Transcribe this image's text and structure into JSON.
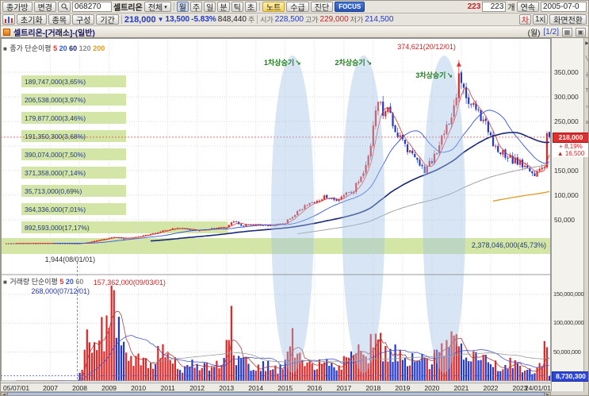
{
  "colors": {
    "up": "#dd2626",
    "down": "#2239cc",
    "ma5": "#e03030",
    "ma20": "#3355dd",
    "ma60": "#1a2878",
    "ma120": "#999999",
    "ma200": "#de9a1e",
    "vma5": "#b04040",
    "vma20": "#4455cc",
    "vma60": "#999999",
    "band": "#cfe49e",
    "ellipse": "rgba(160,192,228,0.42)",
    "badge_price_bg": "#e02e2e",
    "badge_vol_bg": "#2b46d8"
  },
  "toolbar1": {
    "mode": "종가방",
    "change": "변경",
    "code": "068270",
    "name": "셀트리온",
    "scope": "전체",
    "scope_arrow": "▾",
    "periods": [
      "월",
      "주",
      "일",
      "분",
      "틱",
      "초"
    ],
    "note": "노트",
    "supply": "수급",
    "diagnosis": "진단",
    "focus": "FOCUS",
    "count_badge": "223",
    "count": "223",
    "count_unit": "개",
    "continuous": "연속",
    "start_date": "2005-07-0"
  },
  "toolbar2": {
    "init": "초기화",
    "stock": "종목",
    "config": "구성",
    "range": "기간",
    "price": "218,000",
    "arrow": "▼",
    "change": "13,500",
    "pct": "-5.83%",
    "volume": "848,440",
    "volume_unit": "주",
    "open_label": "시가",
    "open": "228,500",
    "high_label": "고가",
    "high": "229,000",
    "low_label": "저가",
    "low": "214,500",
    "chart_short": "차",
    "scale": "1x|",
    "fullscreen": "화면전환"
  },
  "titlebar": {
    "title": "셀트리온-[거래소]-(일반)",
    "period": "(월)",
    "page": "[1/2]"
  },
  "legend_main": {
    "marker": "■",
    "label": "종가 단순이평",
    "w1": "5",
    "w2": "20",
    "w3": "60",
    "w4": "120",
    "w5": "200"
  },
  "legend_volume": {
    "marker": "■",
    "label": "거래량 단순이평",
    "w1": "5",
    "w2": "20",
    "w3": "60"
  },
  "annotations": {
    "rise1": "1차상승기",
    "rise2": "2차상승기",
    "rise3": "3차상승기",
    "arrow": "↘",
    "peak": "374,621(20/12/01)",
    "low": "1,944(08/01/01)",
    "vol_low": "268,000(07/12/01)",
    "vol_peak": "157,362,000(09/03/01)"
  },
  "volume_profile": {
    "rows": [
      {
        "text": "189,747,000(3,65%)",
        "pct": 3.65
      },
      {
        "text": "206,538,000(3,97%)",
        "pct": 3.97
      },
      {
        "text": "179,877,000(3,46%)",
        "pct": 3.46
      },
      {
        "text": "191,350,300(3,68%)",
        "pct": 3.68
      },
      {
        "text": "390,074,000(7,50%)",
        "pct": 7.5
      },
      {
        "text": "371,358,000(7,14%)",
        "pct": 7.14
      },
      {
        "text": "35,713,000(0,69%)",
        "pct": 0.69
      },
      {
        "text": "364,336,000(7,01%)",
        "pct": 7.01
      },
      {
        "text": "892,593,000(17,17%)",
        "pct": 17.17
      }
    ],
    "total": {
      "text": "2,378,046,000(45,73%)",
      "pct": 45.73
    }
  },
  "axis": {
    "price_labels": [
      [
        350000,
        "350,000"
      ],
      [
        300000,
        "300,000"
      ],
      [
        250000,
        "250,000"
      ],
      [
        150000,
        "150,000"
      ],
      [
        100000,
        "100,000"
      ],
      [
        50000,
        "50,000"
      ]
    ],
    "price_badge": {
      "text": "218,000",
      "sub1": "+ 8,19%",
      "sub2": "▲ 16,500"
    },
    "volume_labels": [
      [
        150000000,
        "150,000,000"
      ],
      [
        100000000,
        "100,000,000"
      ],
      [
        50000000,
        "50,000,000"
      ]
    ],
    "volume_badge": "8,730,300",
    "x_labels": [
      [
        "05/07/01",
        0,
        "left"
      ],
      [
        "2007",
        18,
        "c"
      ],
      [
        "2008",
        30,
        "c"
      ],
      [
        "2009",
        42,
        "c"
      ],
      [
        "2010",
        54,
        "c"
      ],
      [
        "2011",
        66,
        "c"
      ],
      [
        "2012",
        78,
        "c"
      ],
      [
        "2013",
        90,
        "c"
      ],
      [
        "2014",
        102,
        "c"
      ],
      [
        "2015",
        114,
        "c"
      ],
      [
        "2016",
        126,
        "c"
      ],
      [
        "2017",
        138,
        "c"
      ],
      [
        "2018",
        150,
        "c"
      ],
      [
        "2019",
        162,
        "c"
      ],
      [
        "2020",
        174,
        "c"
      ],
      [
        "2021",
        186,
        "c"
      ],
      [
        "2022",
        198,
        "c"
      ],
      [
        "2023",
        210,
        "c"
      ],
      [
        "24/01/01",
        222,
        "right"
      ]
    ]
  },
  "right_toolbar": {
    "icons": [
      {
        "name": "select-tool-icon",
        "glyph": "▶"
      },
      {
        "name": "trendline-tool-icon",
        "glyph": "╲"
      },
      {
        "name": "crosshair-tool-icon",
        "glyph": "┼"
      },
      {
        "name": "text-tool-icon",
        "glyph": "T"
      },
      {
        "name": "zoom-tool-icon",
        "glyph": "○"
      },
      {
        "name": "indicator-tool-icon",
        "glyph": "≡"
      },
      {
        "name": "pattern-tool-icon",
        "glyph": "□"
      },
      {
        "name": "collapse-panel-icon",
        "glyph": "◀"
      }
    ]
  },
  "chart_data": {
    "type": "candlestick+volume",
    "symbol": "068270",
    "period": "monthly",
    "months": 223,
    "start": "2005-07",
    "end": "2024-01",
    "seed": 11,
    "price_axis_max": 419000,
    "close_anchors": [
      [
        0,
        2200
      ],
      [
        18,
        2500
      ],
      [
        29,
        2100
      ],
      [
        30,
        1960
      ],
      [
        34,
        5000
      ],
      [
        38,
        9000
      ],
      [
        42,
        13000
      ],
      [
        44,
        15000
      ],
      [
        48,
        12000
      ],
      [
        54,
        16000
      ],
      [
        60,
        22000
      ],
      [
        66,
        30000
      ],
      [
        72,
        34000
      ],
      [
        78,
        28000
      ],
      [
        84,
        32000
      ],
      [
        90,
        36000
      ],
      [
        93,
        48000
      ],
      [
        96,
        38000
      ],
      [
        102,
        42000
      ],
      [
        108,
        38000
      ],
      [
        114,
        44000
      ],
      [
        118,
        62000
      ],
      [
        122,
        78000
      ],
      [
        126,
        88000
      ],
      [
        130,
        96000
      ],
      [
        134,
        90000
      ],
      [
        138,
        98000
      ],
      [
        142,
        110000
      ],
      [
        146,
        150000
      ],
      [
        149,
        200000
      ],
      [
        152,
        295000
      ],
      [
        154,
        260000
      ],
      [
        156,
        280000
      ],
      [
        158,
        250000
      ],
      [
        160,
        225000
      ],
      [
        162,
        205000
      ],
      [
        165,
        185000
      ],
      [
        168,
        165000
      ],
      [
        171,
        150000
      ],
      [
        174,
        170000
      ],
      [
        178,
        215000
      ],
      [
        181,
        250000
      ],
      [
        184,
        300000
      ],
      [
        185,
        340000
      ],
      [
        187,
        320000
      ],
      [
        189,
        285000
      ],
      [
        192,
        270000
      ],
      [
        195,
        255000
      ],
      [
        198,
        215000
      ],
      [
        201,
        195000
      ],
      [
        204,
        180000
      ],
      [
        207,
        172000
      ],
      [
        210,
        165000
      ],
      [
        213,
        152000
      ],
      [
        216,
        145000
      ],
      [
        219,
        150000
      ],
      [
        220,
        162000
      ],
      [
        221,
        228000
      ],
      [
        222,
        218000
      ]
    ],
    "volume_anchors": [
      [
        0,
        400000
      ],
      [
        20,
        350000
      ],
      [
        28,
        300000
      ],
      [
        29,
        268000
      ],
      [
        30,
        20000000
      ],
      [
        32,
        45000000
      ],
      [
        34,
        80000000
      ],
      [
        36,
        60000000
      ],
      [
        38,
        110000000
      ],
      [
        40,
        70000000
      ],
      [
        42,
        90000000
      ],
      [
        44,
        157362000
      ],
      [
        46,
        80000000
      ],
      [
        48,
        50000000
      ],
      [
        52,
        35000000
      ],
      [
        56,
        45000000
      ],
      [
        60,
        30000000
      ],
      [
        64,
        55000000
      ],
      [
        68,
        35000000
      ],
      [
        72,
        25000000
      ],
      [
        76,
        30000000
      ],
      [
        80,
        20000000
      ],
      [
        84,
        28000000
      ],
      [
        88,
        35000000
      ],
      [
        92,
        105000000
      ],
      [
        94,
        40000000
      ],
      [
        98,
        30000000
      ],
      [
        102,
        22000000
      ],
      [
        106,
        28000000
      ],
      [
        110,
        20000000
      ],
      [
        114,
        30000000
      ],
      [
        117,
        70000000
      ],
      [
        120,
        35000000
      ],
      [
        124,
        28000000
      ],
      [
        128,
        32000000
      ],
      [
        132,
        25000000
      ],
      [
        136,
        30000000
      ],
      [
        140,
        35000000
      ],
      [
        144,
        45000000
      ],
      [
        148,
        55000000
      ],
      [
        152,
        65000000
      ],
      [
        156,
        50000000
      ],
      [
        160,
        45000000
      ],
      [
        164,
        40000000
      ],
      [
        168,
        35000000
      ],
      [
        172,
        30000000
      ],
      [
        176,
        45000000
      ],
      [
        180,
        55000000
      ],
      [
        184,
        70000000
      ],
      [
        186,
        60000000
      ],
      [
        190,
        40000000
      ],
      [
        194,
        35000000
      ],
      [
        198,
        30000000
      ],
      [
        202,
        25000000
      ],
      [
        206,
        28000000
      ],
      [
        210,
        22000000
      ],
      [
        214,
        20000000
      ],
      [
        218,
        25000000
      ],
      [
        221,
        60000000
      ],
      [
        222,
        8730300
      ]
    ],
    "overrides": {
      "low_i": 30,
      "low_v": 1944,
      "peak_i": 185,
      "peak_v": 374621,
      "vol_low_i": 29,
      "vol_low_v": 268000,
      "vol_peak_i": 44,
      "vol_peak_v": 157362000,
      "last": {
        "open": 228500,
        "high": 229000,
        "low": 214500,
        "close": 218000
      }
    },
    "ma_windows": [
      5,
      20,
      60,
      120,
      200
    ],
    "vol_ma_windows": [
      5,
      20,
      60
    ],
    "rise_periods": [
      {
        "label": "1차상승기",
        "center_index": 117
      },
      {
        "label": "2차상승기",
        "center_index": 146
      },
      {
        "label": "3차상승기",
        "center_index": 179
      }
    ],
    "current_price": 218000,
    "current_volume": 8730300
  }
}
